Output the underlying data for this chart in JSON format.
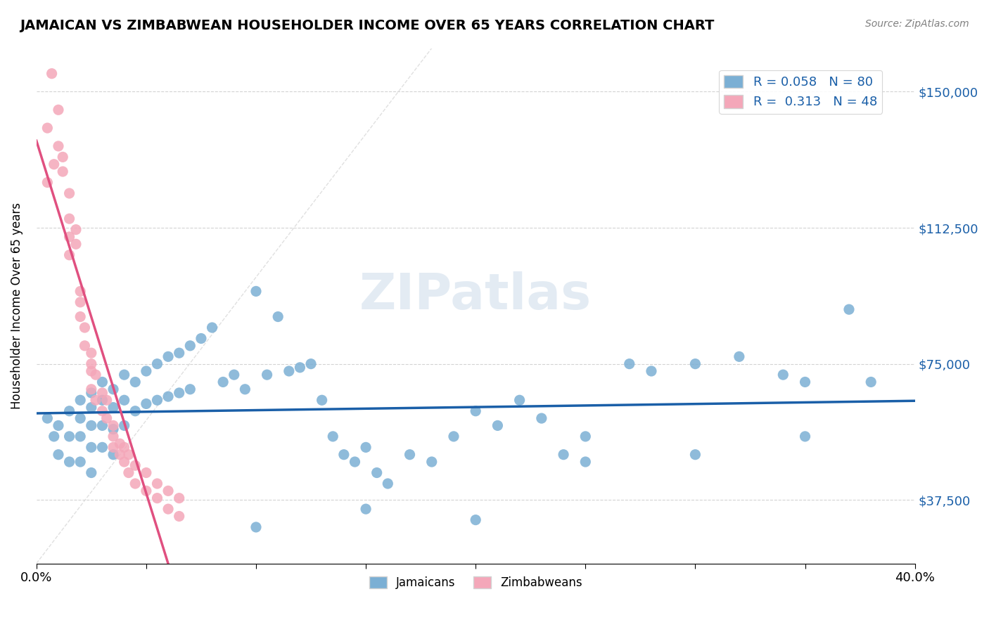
{
  "title": "JAMAICAN VS ZIMBABWEAN HOUSEHOLDER INCOME OVER 65 YEARS CORRELATION CHART",
  "source": "Source: ZipAtlas.com",
  "xlabel": "",
  "ylabel": "Householder Income Over 65 years",
  "xlim": [
    0,
    0.4
  ],
  "ylim": [
    20000,
    162000
  ],
  "xticks": [
    0.0,
    0.05,
    0.1,
    0.15,
    0.2,
    0.25,
    0.3,
    0.35,
    0.4
  ],
  "xtick_labels": [
    "0.0%",
    "",
    "",
    "",
    "",
    "",
    "",
    "",
    "40.0%"
  ],
  "ytick_vals": [
    37500,
    75000,
    112500,
    150000
  ],
  "ytick_labels": [
    "$37,500",
    "$75,000",
    "$112,500",
    "$150,000"
  ],
  "blue_color": "#7bafd4",
  "pink_color": "#f4a7b9",
  "blue_line_color": "#1a5fa8",
  "pink_line_color": "#e05080",
  "R_blue": 0.058,
  "N_blue": 80,
  "R_pink": 0.313,
  "N_pink": 48,
  "watermark": "ZIPatlas",
  "jamaicans_x": [
    0.01,
    0.01,
    0.015,
    0.015,
    0.015,
    0.02,
    0.02,
    0.02,
    0.02,
    0.025,
    0.025,
    0.025,
    0.025,
    0.025,
    0.03,
    0.03,
    0.03,
    0.03,
    0.035,
    0.035,
    0.035,
    0.035,
    0.04,
    0.04,
    0.04,
    0.045,
    0.045,
    0.05,
    0.05,
    0.055,
    0.055,
    0.06,
    0.06,
    0.065,
    0.065,
    0.07,
    0.07,
    0.075,
    0.08,
    0.085,
    0.09,
    0.095,
    0.1,
    0.105,
    0.11,
    0.115,
    0.12,
    0.125,
    0.13,
    0.135,
    0.14,
    0.145,
    0.15,
    0.155,
    0.16,
    0.17,
    0.18,
    0.19,
    0.2,
    0.21,
    0.22,
    0.23,
    0.24,
    0.25,
    0.27,
    0.28,
    0.3,
    0.32,
    0.34,
    0.35,
    0.37,
    0.38,
    0.1,
    0.15,
    0.2,
    0.25,
    0.3,
    0.35,
    0.005,
    0.008
  ],
  "jamaicans_y": [
    58000,
    50000,
    62000,
    55000,
    48000,
    65000,
    60000,
    55000,
    48000,
    67000,
    63000,
    58000,
    52000,
    45000,
    70000,
    65000,
    58000,
    52000,
    68000,
    63000,
    57000,
    50000,
    72000,
    65000,
    58000,
    70000,
    62000,
    73000,
    64000,
    75000,
    65000,
    77000,
    66000,
    78000,
    67000,
    80000,
    68000,
    82000,
    85000,
    70000,
    72000,
    68000,
    95000,
    72000,
    88000,
    73000,
    74000,
    75000,
    65000,
    55000,
    50000,
    48000,
    52000,
    45000,
    42000,
    50000,
    48000,
    55000,
    62000,
    58000,
    65000,
    60000,
    50000,
    55000,
    75000,
    73000,
    75000,
    77000,
    72000,
    70000,
    90000,
    70000,
    30000,
    35000,
    32000,
    48000,
    50000,
    55000,
    60000,
    55000
  ],
  "zimbabweans_x": [
    0.005,
    0.005,
    0.007,
    0.008,
    0.01,
    0.01,
    0.012,
    0.012,
    0.015,
    0.015,
    0.015,
    0.015,
    0.018,
    0.018,
    0.02,
    0.02,
    0.02,
    0.022,
    0.022,
    0.025,
    0.025,
    0.025,
    0.025,
    0.027,
    0.027,
    0.03,
    0.03,
    0.032,
    0.032,
    0.035,
    0.035,
    0.035,
    0.038,
    0.038,
    0.04,
    0.04,
    0.042,
    0.042,
    0.045,
    0.045,
    0.05,
    0.05,
    0.055,
    0.055,
    0.06,
    0.06,
    0.065,
    0.065
  ],
  "zimbabweans_y": [
    140000,
    125000,
    155000,
    130000,
    135000,
    145000,
    128000,
    132000,
    115000,
    122000,
    110000,
    105000,
    112000,
    108000,
    92000,
    88000,
    95000,
    85000,
    80000,
    78000,
    73000,
    68000,
    75000,
    72000,
    65000,
    67000,
    62000,
    65000,
    60000,
    55000,
    58000,
    52000,
    50000,
    53000,
    48000,
    52000,
    45000,
    50000,
    42000,
    47000,
    40000,
    45000,
    38000,
    42000,
    35000,
    40000,
    33000,
    38000
  ]
}
